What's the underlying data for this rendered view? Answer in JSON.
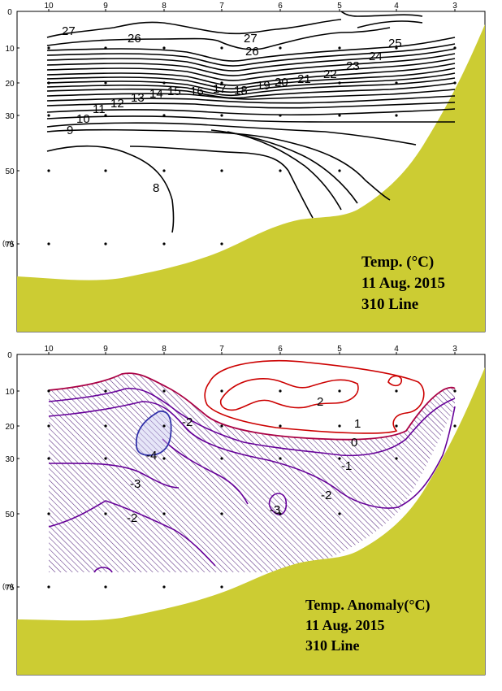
{
  "chart_data": [
    {
      "type": "contour",
      "caption_lines": [
        "Temp. (°C)",
        "11 Aug. 2015",
        "310 Line"
      ],
      "stations": [
        "10",
        "9",
        "8",
        "7",
        "6",
        "5",
        "4",
        "3"
      ],
      "depth_ticks": [
        "0",
        "10",
        "20",
        "30",
        "50",
        "75"
      ],
      "depth_unit": "(m)",
      "contour_levels": [
        "27",
        "26",
        "27",
        "26",
        "25",
        "24",
        "23",
        "22",
        "21",
        "20",
        "19",
        "18",
        "17",
        "16",
        "15",
        "14",
        "13",
        "12",
        "11",
        "10",
        "9",
        "8"
      ],
      "colors": {
        "line": "#000000",
        "land": "#cccc33"
      }
    },
    {
      "type": "contour",
      "caption_lines": [
        "Temp.  Anomaly(°C)",
        "11 Aug. 2015",
        "310 Line"
      ],
      "stations": [
        "10",
        "9",
        "8",
        "7",
        "6",
        "5",
        "4",
        "3"
      ],
      "depth_ticks": [
        "0",
        "10",
        "20",
        "30",
        "50",
        "75"
      ],
      "depth_unit": "(m)",
      "contour_levels": [
        "2",
        "1",
        "0",
        "-1",
        "-2",
        "-2",
        "-3",
        "-4",
        "-3",
        "-2"
      ],
      "colors": {
        "positive": "#cc0000",
        "zero": "#990033",
        "negative": "#660099",
        "cold": "#3333aa",
        "land": "#cccc33"
      }
    }
  ]
}
